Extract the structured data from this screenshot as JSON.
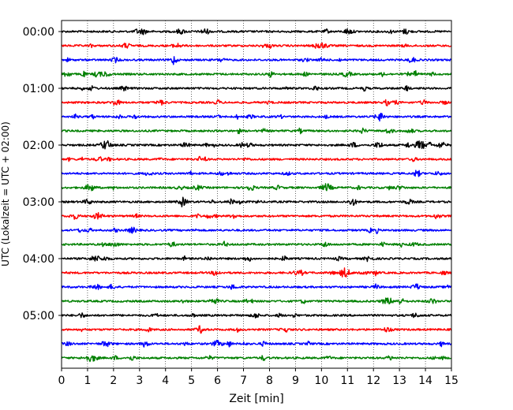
{
  "chart_data": {
    "type": "line",
    "title": "",
    "xlabel": "Zeit  [min]",
    "ylabel": "UTC (Lokalzeit = UTC + 02:00)",
    "xlim": [
      0,
      15
    ],
    "x_ticks": [
      "0",
      "1",
      "2",
      "3",
      "4",
      "5",
      "6",
      "7",
      "8",
      "9",
      "10",
      "11",
      "12",
      "13",
      "14",
      "15"
    ],
    "y_tick_labels": [
      "00:00",
      "01:00",
      "02:00",
      "03:00",
      "04:00",
      "05:00"
    ],
    "grid": "vertical dotted",
    "legend": "none",
    "trace_interval_min": 15,
    "trace_count": 24,
    "trace_colors": [
      "#000000",
      "#ff0000",
      "#0000ff",
      "#008000"
    ],
    "traces": [
      {
        "start": "00:00",
        "color": "#000000"
      },
      {
        "start": "00:15",
        "color": "#ff0000"
      },
      {
        "start": "00:30",
        "color": "#0000ff"
      },
      {
        "start": "00:45",
        "color": "#008000"
      },
      {
        "start": "01:00",
        "color": "#000000"
      },
      {
        "start": "01:15",
        "color": "#ff0000"
      },
      {
        "start": "01:30",
        "color": "#0000ff"
      },
      {
        "start": "01:45",
        "color": "#008000"
      },
      {
        "start": "02:00",
        "color": "#000000"
      },
      {
        "start": "02:15",
        "color": "#ff0000"
      },
      {
        "start": "02:30",
        "color": "#0000ff"
      },
      {
        "start": "02:45",
        "color": "#008000"
      },
      {
        "start": "03:00",
        "color": "#000000"
      },
      {
        "start": "03:15",
        "color": "#ff0000"
      },
      {
        "start": "03:30",
        "color": "#0000ff"
      },
      {
        "start": "03:45",
        "color": "#008000"
      },
      {
        "start": "04:00",
        "color": "#000000"
      },
      {
        "start": "04:15",
        "color": "#ff0000"
      },
      {
        "start": "04:30",
        "color": "#0000ff"
      },
      {
        "start": "04:45",
        "color": "#008000"
      },
      {
        "start": "05:00",
        "color": "#000000"
      },
      {
        "start": "05:15",
        "color": "#ff0000"
      },
      {
        "start": "05:30",
        "color": "#0000ff"
      },
      {
        "start": "05:45",
        "color": "#008000"
      }
    ],
    "events": [
      {
        "trace": 8,
        "minute": 1.7,
        "amp": 1.0
      },
      {
        "trace": 8,
        "minute": 13.8,
        "amp": 1.0
      },
      {
        "trace": 1,
        "minute": 9.9,
        "amp": 0.7
      },
      {
        "trace": 17,
        "minute": 10.9,
        "amp": 1.0
      },
      {
        "trace": 11,
        "minute": 1.1,
        "amp": 0.7
      },
      {
        "trace": 11,
        "minute": 10.2,
        "amp": 0.8
      },
      {
        "trace": 13,
        "minute": 1.4,
        "amp": 0.6
      },
      {
        "trace": 16,
        "minute": 1.3,
        "amp": 0.6
      },
      {
        "trace": 22,
        "minute": 6.0,
        "amp": 0.6
      },
      {
        "trace": 23,
        "minute": 1.2,
        "amp": 0.6
      }
    ]
  }
}
